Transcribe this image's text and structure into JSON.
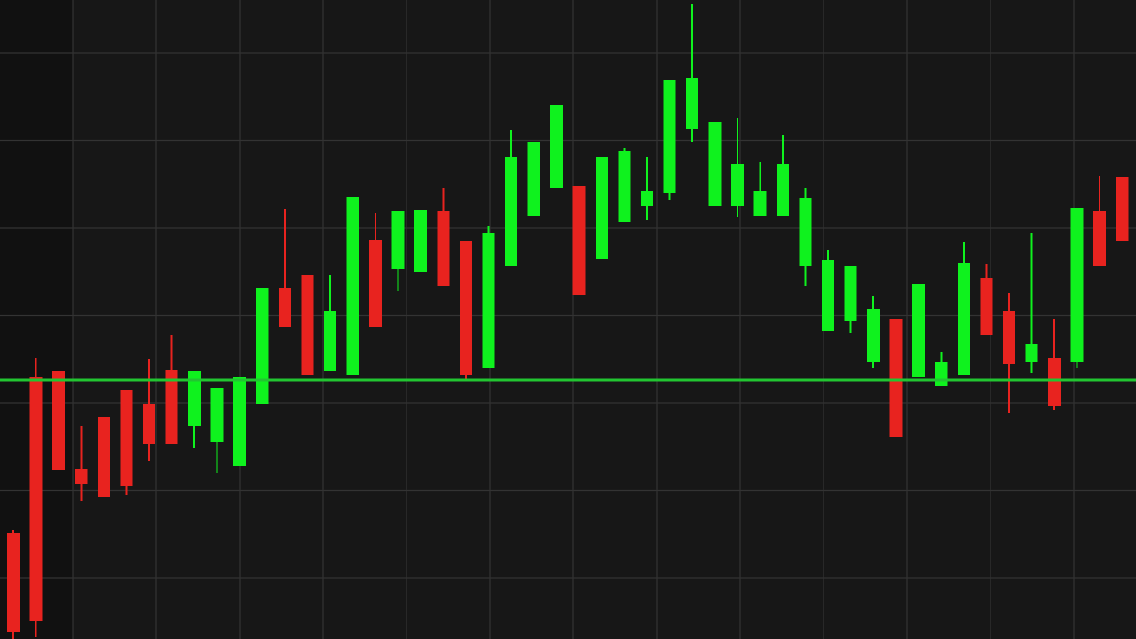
{
  "chart_data": {
    "type": "candlestick",
    "categories": [
      null,
      null,
      null,
      null,
      null,
      null,
      null,
      null,
      null,
      null,
      null,
      null,
      null,
      null,
      null,
      null,
      null,
      null,
      null,
      null,
      null,
      null,
      null,
      null,
      null,
      null,
      null,
      null,
      null,
      null,
      null,
      null,
      null,
      null,
      null,
      null,
      null,
      null,
      null,
      null,
      null,
      null,
      null,
      null,
      null,
      null,
      null,
      null,
      null,
      null
    ],
    "open": [
      12.0,
      29.5,
      30.2,
      19.2,
      25.0,
      28.0,
      26.5,
      30.3,
      24.0,
      22.2,
      19.5,
      26.5,
      39.5,
      41.0,
      30.2,
      29.8,
      45.0,
      41.7,
      41.3,
      48.2,
      44.8,
      30.5,
      42.0,
      47.7,
      50.8,
      51.0,
      42.8,
      47.0,
      48.8,
      50.3,
      57.5,
      48.8,
      48.8,
      47.7,
      47.7,
      42.0,
      34.7,
      35.8,
      31.2,
      36.0,
      29.5,
      28.5,
      29.8,
      40.7,
      37.0,
      31.2,
      31.7,
      31.2,
      48.2,
      52.0
    ],
    "high": [
      12.3,
      31.7,
      30.2,
      24.0,
      25.0,
      28.0,
      31.5,
      34.2,
      30.2,
      28.3,
      29.5,
      39.5,
      48.4,
      41.0,
      41.0,
      49.8,
      48.0,
      48.2,
      48.3,
      50.8,
      44.8,
      46.5,
      57.3,
      56.0,
      60.2,
      51.0,
      54.3,
      55.3,
      54.3,
      63.0,
      71.5,
      58.2,
      58.7,
      53.8,
      56.8,
      50.8,
      43.8,
      42.0,
      38.7,
      36.0,
      40.0,
      32.3,
      44.7,
      42.3,
      39.0,
      45.7,
      36.0,
      48.6,
      52.2,
      52.0
    ],
    "low": [
      0,
      0.2,
      19.0,
      15.5,
      16.0,
      16.2,
      20.0,
      22.0,
      21.5,
      18.7,
      19.5,
      26.5,
      35.2,
      29.8,
      30.2,
      29.8,
      35.2,
      39.2,
      41.3,
      39.8,
      29.2,
      30.5,
      42.0,
      47.7,
      50.8,
      38.8,
      42.8,
      47.0,
      47.2,
      49.5,
      56.0,
      48.8,
      47.5,
      47.7,
      47.7,
      39.8,
      34.7,
      34.5,
      30.5,
      22.8,
      29.5,
      28.5,
      29.8,
      34.3,
      25.5,
      30.0,
      25.8,
      30.5,
      42.0,
      44.8
    ],
    "close": [
      0.8,
      2.0,
      19.0,
      17.5,
      16.0,
      17.2,
      22.0,
      22.0,
      30.2,
      28.3,
      29.5,
      39.5,
      35.2,
      29.8,
      37.0,
      49.8,
      35.2,
      48.2,
      48.3,
      39.8,
      29.8,
      45.8,
      54.3,
      56.0,
      60.2,
      38.8,
      54.3,
      55.0,
      50.5,
      63.0,
      63.2,
      58.2,
      53.5,
      50.5,
      53.5,
      49.7,
      42.7,
      42.0,
      37.2,
      22.8,
      40.0,
      31.2,
      42.4,
      34.3,
      31.0,
      33.2,
      26.2,
      48.6,
      42.0,
      44.8
    ],
    "up_color": "#0ff21e",
    "down_color": "#e8231f",
    "ylim": [
      0,
      72
    ],
    "grid": true,
    "reference_line": {
      "value": 29.2,
      "color": "#22c531"
    }
  }
}
